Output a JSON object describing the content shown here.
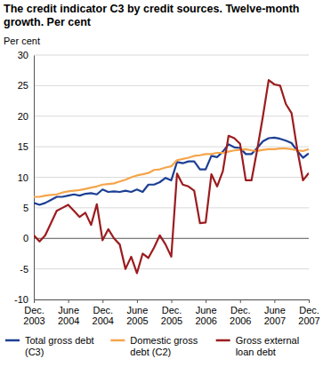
{
  "chart_data": {
    "type": "line",
    "title": "The credit indicator C3 by credit sources. Twelve-month growth. Per cent",
    "y_label": "Per cent",
    "categories": [
      "Dec. 2003",
      null,
      null,
      null,
      null,
      null,
      "June 2004",
      null,
      null,
      null,
      null,
      null,
      "Dec. 2004",
      null,
      null,
      null,
      null,
      null,
      "June 2005",
      null,
      null,
      null,
      null,
      null,
      "Dec. 2005",
      null,
      null,
      null,
      null,
      null,
      "June 2006",
      null,
      null,
      null,
      null,
      null,
      "Dec. 2006",
      null,
      null,
      null,
      null,
      null,
      "June 2007",
      null,
      null,
      null,
      null,
      null,
      "Dec. 2007"
    ],
    "series": [
      {
        "name": "Total gross debt (C3)",
        "color": "#1c3f94",
        "values": [
          5.8,
          5.5,
          5.8,
          6.3,
          6.8,
          6.8,
          7.0,
          7.2,
          7.0,
          7.3,
          7.4,
          7.2,
          8.0,
          7.6,
          7.7,
          7.6,
          7.8,
          7.6,
          8.0,
          7.6,
          8.8,
          8.8,
          9.2,
          9.9,
          9.5,
          12.5,
          12.3,
          12.6,
          12.6,
          11.3,
          11.3,
          13.5,
          13.3,
          14.2,
          15.4,
          14.9,
          14.8,
          13.8,
          13.8,
          14.8,
          15.9,
          16.4,
          16.5,
          16.3,
          16.0,
          15.6,
          14.3,
          13.2,
          13.9
        ]
      },
      {
        "name": "Domestic gross debt (C2)",
        "color": "#f5a54a",
        "values": [
          6.8,
          6.8,
          7.0,
          7.1,
          7.2,
          7.5,
          7.7,
          7.8,
          7.9,
          8.1,
          8.3,
          8.5,
          8.8,
          8.9,
          9.0,
          9.3,
          9.6,
          10.0,
          10.3,
          10.5,
          10.7,
          11.2,
          11.3,
          11.6,
          11.8,
          12.8,
          13.0,
          13.2,
          13.5,
          13.6,
          13.8,
          13.8,
          14.0,
          14.0,
          14.2,
          14.4,
          14.5,
          14.6,
          14.4,
          14.3,
          14.5,
          14.6,
          14.6,
          14.7,
          14.7,
          14.6,
          14.4,
          14.3,
          14.6
        ]
      },
      {
        "name": "Gross external loan debt",
        "color": "#9b1c1f",
        "values": [
          0.5,
          -0.5,
          0.5,
          2.5,
          4.5,
          5.0,
          5.5,
          4.5,
          3.5,
          4.2,
          2.2,
          5.6,
          -0.3,
          1.5,
          0,
          -1,
          -5,
          -3,
          -5.7,
          -2.5,
          -3.2,
          -1.5,
          0.5,
          -1,
          -3,
          10.6,
          8.8,
          8.5,
          7.8,
          2.5,
          2.6,
          10.5,
          8.5,
          11.0,
          16.8,
          16.4,
          15.5,
          9.5,
          9.5,
          14.5,
          20.0,
          25.9,
          25.2,
          25.0,
          22.0,
          20.5,
          14.5,
          9.5,
          10.7
        ]
      }
    ],
    "ylim": [
      -10,
      30
    ],
    "yticks": [
      -10,
      -5,
      0,
      5,
      10,
      15,
      20,
      25,
      30
    ],
    "grid": true,
    "legend": "bottom"
  }
}
